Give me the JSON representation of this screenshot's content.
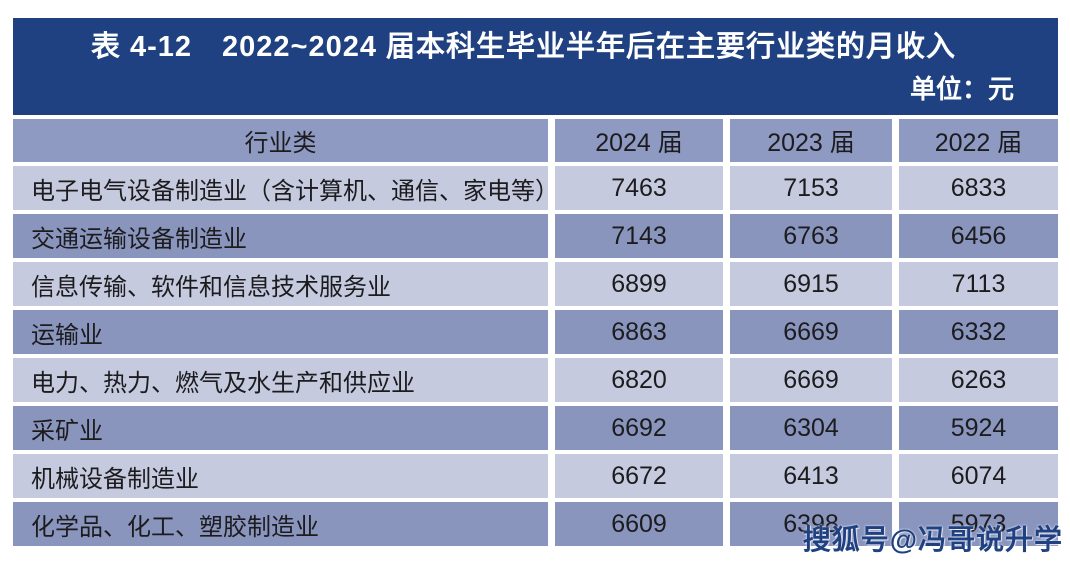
{
  "title": "表 4-12　2022~2024 届本科生毕业半年后在主要行业类的月收入",
  "unit": "单位：元",
  "table": {
    "headers": [
      "行业类",
      "2024 届",
      "2023 届",
      "2022 届"
    ],
    "rows": [
      {
        "industry": "电子电气设备制造业（含计算机、通信、家电等）",
        "y2024": "7463",
        "y2023": "7153",
        "y2022": "6833"
      },
      {
        "industry": "交通运输设备制造业",
        "y2024": "7143",
        "y2023": "6763",
        "y2022": "6456"
      },
      {
        "industry": "信息传输、软件和信息技术服务业",
        "y2024": "6899",
        "y2023": "6915",
        "y2022": "7113"
      },
      {
        "industry": "运输业",
        "y2024": "6863",
        "y2023": "6669",
        "y2022": "6332"
      },
      {
        "industry": "电力、热力、燃气及水生产和供应业",
        "y2024": "6820",
        "y2023": "6669",
        "y2022": "6263"
      },
      {
        "industry": "采矿业",
        "y2024": "6692",
        "y2023": "6304",
        "y2022": "5924"
      },
      {
        "industry": "机械设备制造业",
        "y2024": "6672",
        "y2023": "6413",
        "y2022": "6074"
      },
      {
        "industry": "化学品、化工、塑胶制造业",
        "y2024": "6609",
        "y2023": "6398",
        "y2022": "5973"
      }
    ]
  },
  "watermark": "搜狐号@冯哥说升学",
  "colors": {
    "title_band": "#1f4181",
    "header_row": "#8f9ac3",
    "dark_row": "#8a95be",
    "light_row": "#c5cadf",
    "cell_text": "#1c1c1e",
    "title_text": "#ffffff",
    "watermark_text": "#1f4181"
  }
}
